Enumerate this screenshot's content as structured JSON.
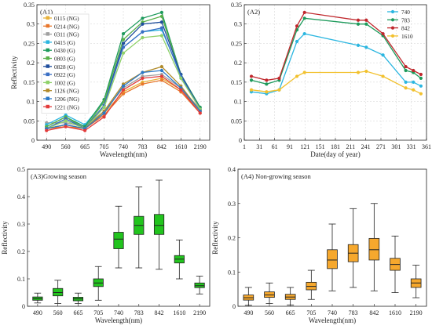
{
  "chart_data": [
    {
      "id": "A1",
      "type": "line",
      "title": "(A1)",
      "xlabel": "Wavelength(nm)",
      "ylabel": "Reflectivity",
      "categories": [
        "490",
        "560",
        "665",
        "705",
        "740",
        "783",
        "842",
        "1610",
        "2190"
      ],
      "ylim": [
        0,
        0.35
      ],
      "yticks": [
        0,
        0.05,
        0.1,
        0.15,
        0.2,
        0.25,
        0.3,
        0.35
      ],
      "grid": true,
      "legend_position": "top-left",
      "series": [
        {
          "name": "0115 (NG)",
          "color": "#e8b23a",
          "values": [
            0.03,
            0.04,
            0.03,
            0.07,
            0.125,
            0.15,
            0.16,
            0.13,
            0.075
          ]
        },
        {
          "name": "0214 (NG)",
          "color": "#e8762b",
          "values": [
            0.03,
            0.035,
            0.03,
            0.065,
            0.12,
            0.145,
            0.155,
            0.125,
            0.07
          ]
        },
        {
          "name": "0311 (NG)",
          "color": "#a0a0a0",
          "values": [
            0.045,
            0.045,
            0.035,
            0.075,
            0.135,
            0.165,
            0.17,
            0.135,
            0.08
          ]
        },
        {
          "name": "0415 (G)",
          "color": "#2bb6e0",
          "values": [
            0.04,
            0.065,
            0.04,
            0.1,
            0.24,
            0.28,
            0.285,
            0.17,
            0.08
          ]
        },
        {
          "name": "0430 (G)",
          "color": "#1d9a5b",
          "values": [
            0.035,
            0.06,
            0.035,
            0.105,
            0.275,
            0.315,
            0.33,
            0.17,
            0.085
          ]
        },
        {
          "name": "0803 (G)",
          "color": "#5ab04a",
          "values": [
            0.035,
            0.06,
            0.03,
            0.1,
            0.26,
            0.305,
            0.32,
            0.17,
            0.08
          ]
        },
        {
          "name": "0828 (G)",
          "color": "#1f4e9c",
          "values": [
            0.03,
            0.055,
            0.03,
            0.09,
            0.25,
            0.3,
            0.305,
            0.17,
            0.08
          ]
        },
        {
          "name": "0922 (G)",
          "color": "#3a6fc4",
          "values": [
            0.03,
            0.055,
            0.03,
            0.09,
            0.24,
            0.28,
            0.29,
            0.165,
            0.08
          ]
        },
        {
          "name": "1002 (G)",
          "color": "#8fd16a",
          "values": [
            0.03,
            0.05,
            0.03,
            0.085,
            0.225,
            0.265,
            0.27,
            0.16,
            0.08
          ]
        },
        {
          "name": "1126 (NG)",
          "color": "#b08a2a",
          "values": [
            0.03,
            0.04,
            0.03,
            0.075,
            0.145,
            0.175,
            0.19,
            0.14,
            0.075
          ]
        },
        {
          "name": "1206 (NG)",
          "color": "#2a78c8",
          "values": [
            0.03,
            0.04,
            0.03,
            0.07,
            0.14,
            0.175,
            0.18,
            0.135,
            0.075
          ]
        },
        {
          "name": "1221 (NG)",
          "color": "#e23b3b",
          "values": [
            0.025,
            0.035,
            0.025,
            0.06,
            0.13,
            0.16,
            0.165,
            0.13,
            0.07
          ]
        }
      ]
    },
    {
      "id": "A2",
      "type": "line",
      "title": "(A2)",
      "xlabel": "Date(day of year)",
      "ylabel": "",
      "xlim": [
        1,
        361
      ],
      "xticks": [
        1,
        31,
        61,
        91,
        121,
        151,
        181,
        211,
        241,
        271,
        301,
        331,
        361
      ],
      "ylim": [
        0,
        0.35
      ],
      "yticks": [
        0,
        0.05,
        0.1,
        0.15,
        0.2,
        0.25,
        0.3,
        0.35
      ],
      "grid": true,
      "legend_position": "top-right",
      "x": [
        15,
        45,
        70,
        105,
        120,
        226,
        242,
        275,
        320,
        335,
        350
      ],
      "series": [
        {
          "name": "740",
          "color": "#2bb6e0",
          "values": [
            0.125,
            0.12,
            0.13,
            0.255,
            0.275,
            0.245,
            0.24,
            0.22,
            0.15,
            0.15,
            0.14
          ]
        },
        {
          "name": "783",
          "color": "#1d9a5b",
          "values": [
            0.155,
            0.145,
            0.155,
            0.285,
            0.315,
            0.3,
            0.3,
            0.27,
            0.18,
            0.175,
            0.16
          ]
        },
        {
          "name": "842",
          "color": "#c0282d",
          "values": [
            0.165,
            0.155,
            0.16,
            0.295,
            0.33,
            0.31,
            0.31,
            0.275,
            0.19,
            0.18,
            0.17
          ]
        },
        {
          "name": "1610",
          "color": "#f2c12e",
          "values": [
            0.13,
            0.125,
            0.13,
            0.165,
            0.175,
            0.175,
            0.178,
            0.165,
            0.135,
            0.13,
            0.12
          ]
        }
      ]
    },
    {
      "id": "A3",
      "type": "box",
      "title": "(A3)Growing season",
      "xlabel": "Wavelength(nm)",
      "ylabel": "Reflectivity",
      "categories": [
        "490",
        "560",
        "665",
        "705",
        "740",
        "783",
        "842",
        "1610",
        "2190"
      ],
      "ylim": [
        0,
        0.5
      ],
      "yticks": [
        0,
        0.1,
        0.2,
        0.3,
        0.4,
        0.5
      ],
      "color": "#22c41e",
      "boxes": [
        {
          "min": 0.012,
          "q1": 0.022,
          "median": 0.028,
          "q3": 0.034,
          "max": 0.048
        },
        {
          "min": 0.01,
          "q1": 0.038,
          "median": 0.05,
          "q3": 0.065,
          "max": 0.095
        },
        {
          "min": 0.01,
          "q1": 0.02,
          "median": 0.027,
          "q3": 0.033,
          "max": 0.048
        },
        {
          "min": 0.022,
          "q1": 0.072,
          "median": 0.085,
          "q3": 0.1,
          "max": 0.145
        },
        {
          "min": 0.14,
          "q1": 0.21,
          "median": 0.245,
          "q3": 0.27,
          "max": 0.365
        },
        {
          "min": 0.14,
          "q1": 0.262,
          "median": 0.295,
          "q3": 0.328,
          "max": 0.435
        },
        {
          "min": 0.135,
          "q1": 0.262,
          "median": 0.295,
          "q3": 0.335,
          "max": 0.46
        },
        {
          "min": 0.1,
          "q1": 0.158,
          "median": 0.172,
          "q3": 0.185,
          "max": 0.242
        },
        {
          "min": 0.045,
          "q1": 0.068,
          "median": 0.075,
          "q3": 0.085,
          "max": 0.11
        }
      ]
    },
    {
      "id": "A4",
      "type": "box",
      "title": "(A4) Non-growing season",
      "xlabel": "Wavelength(nm)",
      "ylabel": "Reflectivity",
      "categories": [
        "490",
        "560",
        "665",
        "705",
        "740",
        "783",
        "842",
        "1610",
        "2190"
      ],
      "ylim": [
        0,
        0.4
      ],
      "yticks": [
        0,
        0.1,
        0.2,
        0.3,
        0.4
      ],
      "color": "#f6a82d",
      "boxes": [
        {
          "min": 0.003,
          "q1": 0.018,
          "median": 0.025,
          "q3": 0.033,
          "max": 0.055
        },
        {
          "min": 0.008,
          "q1": 0.026,
          "median": 0.033,
          "q3": 0.042,
          "max": 0.068
        },
        {
          "min": 0.004,
          "q1": 0.02,
          "median": 0.027,
          "q3": 0.035,
          "max": 0.055
        },
        {
          "min": 0.02,
          "q1": 0.048,
          "median": 0.058,
          "q3": 0.07,
          "max": 0.105
        },
        {
          "min": 0.045,
          "q1": 0.11,
          "median": 0.135,
          "q3": 0.165,
          "max": 0.24
        },
        {
          "min": 0.055,
          "q1": 0.13,
          "median": 0.155,
          "q3": 0.18,
          "max": 0.285
        },
        {
          "min": 0.045,
          "q1": 0.135,
          "median": 0.165,
          "q3": 0.198,
          "max": 0.3
        },
        {
          "min": 0.04,
          "q1": 0.105,
          "median": 0.122,
          "q3": 0.14,
          "max": 0.205
        },
        {
          "min": 0.025,
          "q1": 0.055,
          "median": 0.068,
          "q3": 0.08,
          "max": 0.12
        }
      ]
    }
  ]
}
